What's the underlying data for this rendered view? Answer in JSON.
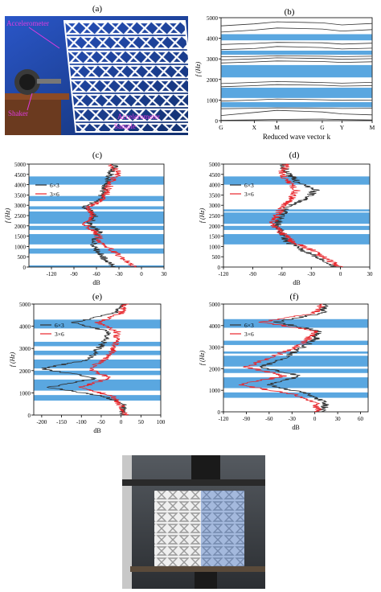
{
  "panel_labels": [
    "(a)",
    "(b)",
    "(c)",
    "(d)",
    "(e)",
    "(f)",
    "(g)"
  ],
  "photo_a": {
    "annotations": [
      "Accelerometer",
      "Shaker",
      "Accelerometer",
      "Sample"
    ]
  },
  "colors": {
    "bandgap": "#5AA7E0",
    "series_6x3": "#333333",
    "series_3x6": "#E8262B",
    "annotation": "#E03AE0"
  },
  "chart_data": [
    {
      "panel": "(b)",
      "type": "line",
      "ylabel": "f (Hz)",
      "xlabel": "Reduced wave vector k",
      "x_ticks": [
        "G",
        "X",
        "M",
        "G",
        "Y",
        "M"
      ],
      "y_ticks": [
        0,
        1000,
        2000,
        3000,
        4000,
        5000
      ],
      "ylim": [
        0,
        5000
      ],
      "bandgaps": [
        [
          650,
          900
        ],
        [
          1100,
          1600
        ],
        [
          2100,
          2700
        ],
        [
          3200,
          3400
        ],
        [
          3900,
          4200
        ]
      ],
      "bands": [
        [
          20,
          40,
          60,
          80,
          50,
          30
        ],
        [
          250,
          400,
          500,
          420,
          330,
          280
        ],
        [
          580,
          600,
          620,
          610,
          590,
          600
        ],
        [
          950,
          1000,
          1050,
          1010,
          990,
          1000
        ],
        [
          1650,
          1700,
          1750,
          1720,
          1680,
          1700
        ],
        [
          1800,
          1860,
          1900,
          1850,
          1820,
          1860
        ],
        [
          2800,
          2850,
          2900,
          2870,
          2830,
          2860
        ],
        [
          2950,
          3000,
          3050,
          3020,
          2980,
          3010
        ],
        [
          3100,
          3120,
          3150,
          3130,
          3110,
          3130
        ],
        [
          3450,
          3500,
          3600,
          3550,
          3480,
          3520
        ],
        [
          3700,
          3750,
          3800,
          3780,
          3720,
          3760
        ],
        [
          4300,
          4400,
          4500,
          4450,
          4350,
          4420
        ],
        [
          4600,
          4700,
          4800,
          4750,
          4650,
          4720
        ]
      ]
    },
    {
      "panel": "(c)",
      "type": "line",
      "xlabel": "dB",
      "ylabel": "f (Hz)",
      "xlim": [
        -150,
        30
      ],
      "x_ticks": [
        -120,
        -90,
        -60,
        -30,
        0,
        30
      ],
      "ylim": [
        0,
        5000
      ],
      "y_ticks": [
        0,
        500,
        1000,
        1500,
        2000,
        2500,
        3000,
        3500,
        4000,
        4500,
        5000
      ],
      "bandgaps": [
        [
          0,
          80
        ],
        [
          650,
          900
        ],
        [
          1100,
          1600
        ],
        [
          1800,
          2000
        ],
        [
          2100,
          2700
        ],
        [
          2800,
          2950
        ],
        [
          3200,
          3450
        ],
        [
          4000,
          4400
        ]
      ],
      "legend": [
        "6×3",
        "3×6"
      ],
      "series": [
        {
          "name": "6×3",
          "profile": [
            -35,
            -50,
            -60,
            -65,
            -55,
            -70,
            -60,
            -75,
            -55,
            -50,
            -45,
            -40,
            -35
          ]
        },
        {
          "name": "3×6",
          "profile": [
            -10,
            -25,
            -40,
            -55,
            -60,
            -75,
            -65,
            -70,
            -50,
            -45,
            -40,
            -30,
            -45
          ]
        }
      ]
    },
    {
      "panel": "(d)",
      "type": "line",
      "xlabel": "dB",
      "ylabel": "f (Hz)",
      "xlim": [
        -120,
        30
      ],
      "x_ticks": [
        -120,
        -90,
        -60,
        -30,
        0,
        30
      ],
      "ylim": [
        0,
        5000
      ],
      "y_ticks": [
        0,
        500,
        1000,
        1500,
        2000,
        2500,
        3000,
        3500,
        4000,
        4500,
        5000
      ],
      "bandgaps": [
        [
          1100,
          1600
        ],
        [
          1800,
          2000
        ],
        [
          2100,
          2650
        ],
        [
          2700,
          2800
        ],
        [
          4000,
          4400
        ]
      ],
      "legend": [
        "6×3",
        "3×6"
      ],
      "series": [
        {
          "name": "6×3",
          "profile": [
            -5,
            -20,
            -40,
            -55,
            -60,
            -65,
            -60,
            -55,
            -35,
            -25,
            -45,
            -55,
            -60
          ]
        },
        {
          "name": "3×6",
          "profile": [
            0,
            -15,
            -30,
            -50,
            -60,
            -70,
            -65,
            -60,
            -50,
            -45,
            -55,
            -60,
            -55
          ]
        }
      ]
    },
    {
      "panel": "(e)",
      "type": "line",
      "xlabel": "dB",
      "ylabel": "f (Hz)",
      "xlim": [
        -220,
        100
      ],
      "x_ticks": [
        -200,
        -150,
        -100,
        -50,
        0,
        50,
        100
      ],
      "ylim": [
        0,
        5000
      ],
      "y_ticks": [
        0,
        1000,
        2000,
        3000,
        4000,
        5000
      ],
      "bandgaps": [
        [
          650,
          900
        ],
        [
          1100,
          1600
        ],
        [
          1800,
          2000
        ],
        [
          2100,
          2500
        ],
        [
          2700,
          2900
        ],
        [
          3100,
          3300
        ],
        [
          3900,
          4300
        ]
      ],
      "legend": [
        "6×3",
        "3×6"
      ],
      "series": [
        {
          "name": "6×3",
          "profile": [
            0,
            10,
            -40,
            -180,
            -60,
            -200,
            -80,
            -60,
            -40,
            -30,
            -120,
            -20,
            10
          ]
        },
        {
          "name": "3×6",
          "profile": [
            10,
            0,
            -20,
            -100,
            -30,
            -80,
            -40,
            -20,
            -10,
            -10,
            -60,
            0,
            10
          ]
        }
      ]
    },
    {
      "panel": "(f)",
      "type": "line",
      "xlabel": "dB",
      "ylabel": "f (Hz)",
      "xlim": [
        -120,
        70
      ],
      "x_ticks": [
        -120,
        -90,
        -60,
        -30,
        0,
        30,
        60
      ],
      "ylim": [
        0,
        5000
      ],
      "y_ticks": [
        0,
        1000,
        2000,
        3000,
        4000,
        5000
      ],
      "bandgaps": [
        [
          650,
          900
        ],
        [
          1100,
          1600
        ],
        [
          1800,
          2000
        ],
        [
          2100,
          2600
        ],
        [
          2700,
          2800
        ],
        [
          3100,
          3300
        ],
        [
          3900,
          4300
        ]
      ],
      "legend": [
        "6×3",
        "3×6"
      ],
      "series": [
        {
          "name": "6×3",
          "profile": [
            10,
            15,
            -10,
            -60,
            -20,
            -70,
            -40,
            -20,
            0,
            5,
            -50,
            10,
            15
          ]
        },
        {
          "name": "3×6",
          "profile": [
            5,
            0,
            -30,
            -100,
            -40,
            -90,
            -60,
            -30,
            -10,
            0,
            -70,
            0,
            10
          ]
        }
      ]
    }
  ]
}
